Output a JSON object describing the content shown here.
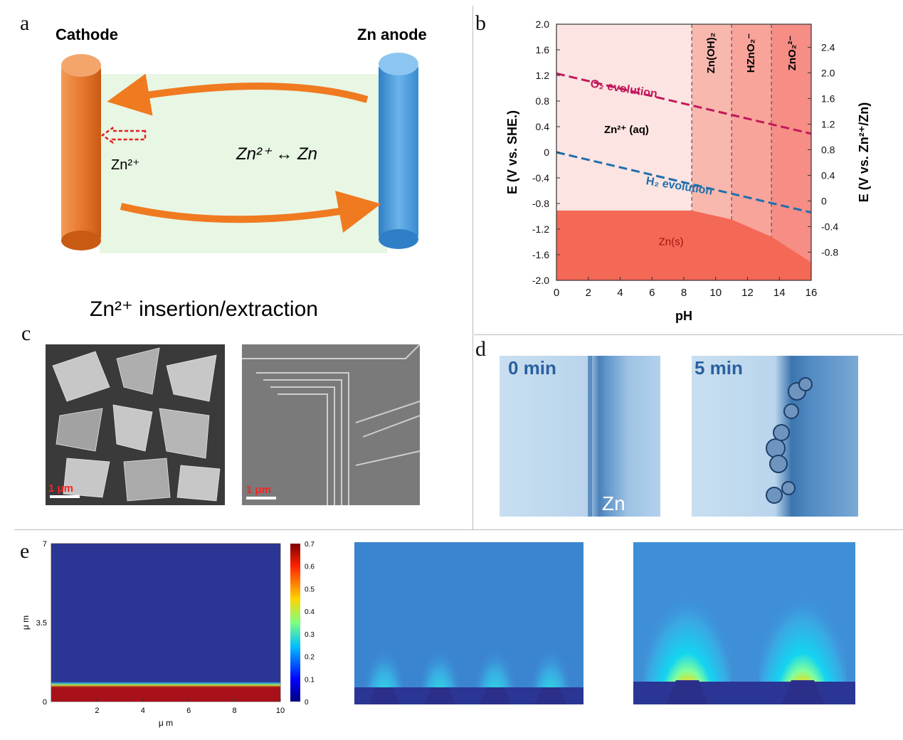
{
  "panel_letters": {
    "a": "a",
    "b": "b",
    "c": "c",
    "d": "d",
    "e": "e"
  },
  "panel_a": {
    "cathode_label": "Cathode",
    "anode_label": "Zn anode",
    "ion_label": "Zn²⁺",
    "reaction_label": "Zn²⁺ ↔ Zn",
    "caption": "Zn²⁺ insertion/extraction",
    "colors": {
      "cathode": "#e8792f",
      "anode": "#4a9ad8",
      "electrolyte": "#e8f6e4",
      "arrow": "#f07a20"
    }
  },
  "panel_b_chart": {
    "type": "area",
    "xlabel": "pH",
    "ylabel": "E  (V vs. SHE.)",
    "y2label": "E (V vs. Zn²⁺/Zn)",
    "xlim": [
      0,
      16
    ],
    "ylim": [
      -2.0,
      2.0
    ],
    "x_ticks": [
      "0",
      "2",
      "4",
      "6",
      "8",
      "10",
      "12",
      "14",
      "16"
    ],
    "y_ticks": [
      "2.0",
      "1.6",
      "1.2",
      "0.8",
      "0.4",
      "0",
      "-0.4",
      "-0.8",
      "-1.2",
      "-1.6",
      "-2.0"
    ],
    "y2_ticks": [
      "2.4",
      "2.0",
      "1.6",
      "1.2",
      "0.8",
      "0.4",
      "0",
      "-0.4",
      "-0.8"
    ],
    "regions": [
      {
        "label": "Zn²⁺ (aq)",
        "x": [
          0,
          8.5
        ]
      },
      {
        "label": "Zn(OH)₂",
        "x": [
          8.5,
          11
        ]
      },
      {
        "label": "HZnO₂⁻",
        "x": [
          11,
          13.5
        ]
      },
      {
        "label": "ZnO₂²⁻",
        "x": [
          13.5,
          16
        ]
      },
      {
        "label": "Zn(s)",
        "x": [
          0,
          16
        ]
      }
    ],
    "series": [
      {
        "name": "O₂ evolution",
        "x": [
          0,
          16
        ],
        "y": [
          1.23,
          0.29
        ]
      },
      {
        "name": "H₂ evolution",
        "x": [
          0,
          16
        ],
        "y": [
          0.0,
          -0.94
        ]
      }
    ],
    "zn_boundary": {
      "x": [
        0,
        8.5,
        11,
        13.5,
        16
      ],
      "y": [
        -0.91,
        -0.91,
        -1.05,
        -1.32,
        -1.72
      ]
    },
    "colors": {
      "aq": "#fbe4e1",
      "zn_oh": "#f8b8ae",
      "hzno": "#f8a49a",
      "zno": "#f68e86",
      "zn_s": "#f46856",
      "o2": "#c2185b",
      "h2": "#1f6fad"
    }
  },
  "panel_c": {
    "scale_bar_left": "1 μm",
    "scale_bar_right": "1 μm"
  },
  "panel_d": {
    "left_time": "0 min",
    "right_time": "5 min",
    "electrode_label": "Zn"
  },
  "panel_e_chart": {
    "type": "heatmap",
    "xlabel": "μ m",
    "ylabel": "μ m",
    "x_ticks": [
      "2",
      "4",
      "6",
      "8",
      "10"
    ],
    "y_ticks": [
      "7",
      "3.5",
      "0"
    ],
    "colorbar_ticks": [
      "0.7",
      "0.6",
      "0.5",
      "0.4",
      "0.3",
      "0.2",
      "0.1",
      "0"
    ],
    "colorbar_range": [
      0,
      0.7
    ]
  }
}
